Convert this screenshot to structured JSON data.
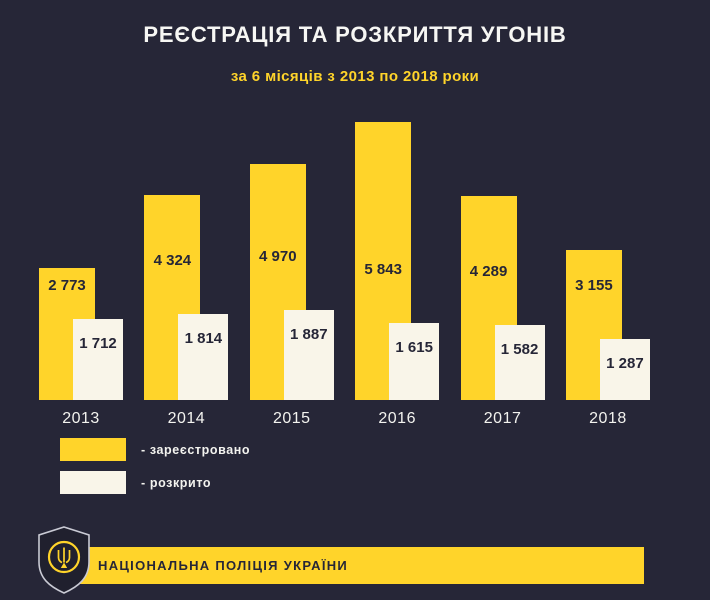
{
  "title": "РЕЄСТРАЦІЯ ТА РОЗКРИТТЯ УГОНІВ",
  "subtitle": "за 6 місяців з 2013 по 2018 роки",
  "colors": {
    "background": "#262637",
    "accent_yellow": "#ffd42a",
    "bar_white": "#f9f5e9",
    "dark_text": "#262637",
    "light_text": "#f3f3ef"
  },
  "chart_data": {
    "type": "bar",
    "title": "РЕЄСТРАЦІЯ ТА РОЗКРИТТЯ УГОНІВ",
    "subtitle": "за 6 місяців з 2013 по 2018 роки",
    "categories": [
      "2013",
      "2014",
      "2015",
      "2016",
      "2017",
      "2018"
    ],
    "series": [
      {
        "name": "зареєстровано",
        "color": "#ffd42a",
        "values": [
          2773,
          4324,
          4970,
          5843,
          4289,
          3155
        ]
      },
      {
        "name": "розкрито",
        "color": "#f9f5e9",
        "values": [
          1712,
          1814,
          1887,
          1615,
          1582,
          1287
        ]
      }
    ],
    "value_labels": [
      [
        "2 773",
        "4 324",
        "4 970",
        "5 843",
        "4 289",
        "3 155"
      ],
      [
        "1 712",
        "1 814",
        "1 887",
        "1 615",
        "1 582",
        "1 287"
      ]
    ],
    "xlabel": "",
    "ylabel": "",
    "ylim": [
      0,
      6000
    ],
    "grid": false,
    "legend_position": "bottom-left"
  },
  "legend": {
    "registered": "- зареєстровано",
    "solved": "- розкрито"
  },
  "footer": {
    "org": "НАЦІОНАЛЬНА ПОЛІЦІЯ УКРАЇНИ",
    "badge_icon": "police-badge-icon"
  }
}
